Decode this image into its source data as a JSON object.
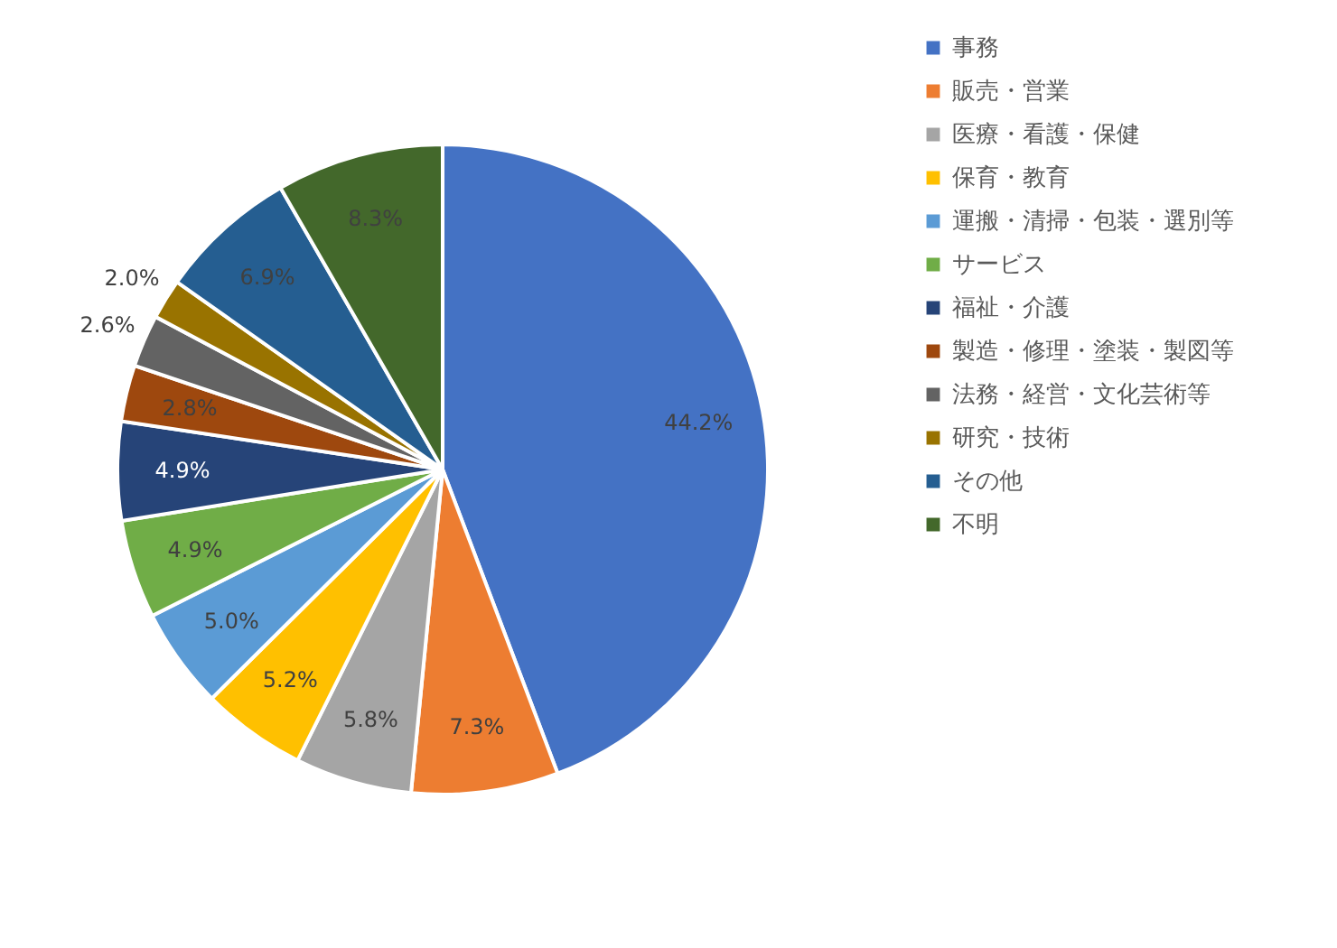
{
  "chart_data": {
    "type": "pie",
    "categories": [
      "事務",
      "販売・営業",
      "医療・看護・保健",
      "保育・教育",
      "運搬・清掃・包装・選別等",
      "サービス",
      "福祉・介護",
      "製造・修理・塗装・製図等",
      "法務・経営・文化芸術等",
      "研究・技術",
      "その他",
      "不明"
    ],
    "values": [
      44.2,
      7.3,
      5.8,
      5.2,
      5.0,
      4.9,
      4.9,
      2.8,
      2.6,
      2.0,
      6.9,
      8.3
    ],
    "value_labels": [
      "44.2%",
      "7.3%",
      "5.8%",
      "5.2%",
      "5.0%",
      "4.9%",
      "4.9%",
      "2.8%",
      "2.6%",
      "2.0%",
      "6.9%",
      "8.3%"
    ],
    "colors": [
      "#4472c4",
      "#ed7d31",
      "#a5a5a5",
      "#ffc000",
      "#5b9bd5",
      "#70ad47",
      "#264478",
      "#9e480e",
      "#636363",
      "#997300",
      "#255e91",
      "#43682b"
    ],
    "legend": "right"
  }
}
